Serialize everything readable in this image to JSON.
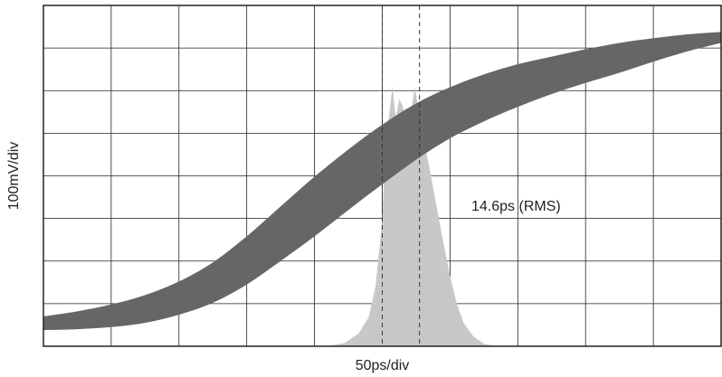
{
  "chart_data": {
    "type": "area",
    "title": "",
    "xlabel": "50ps/div",
    "ylabel": "100mV/div",
    "x_unit_per_div": "50ps",
    "y_unit_per_div": "100mV",
    "divisions": {
      "x": 10,
      "y": 8
    },
    "xlim": [
      0,
      10
    ],
    "ylim": [
      0,
      8
    ],
    "grid": true,
    "series": [
      {
        "role": "waveform-eye-band",
        "color": "#666666",
        "x": [
          0,
          0.5,
          1,
          1.5,
          2,
          2.5,
          3,
          3.5,
          4,
          4.5,
          5,
          5.5,
          6,
          6.5,
          7,
          7.5,
          8,
          8.5,
          9,
          9.5,
          10
        ],
        "upper": [
          0.7,
          0.82,
          0.98,
          1.2,
          1.52,
          1.97,
          2.58,
          3.28,
          3.98,
          4.62,
          5.2,
          5.7,
          6.08,
          6.38,
          6.62,
          6.8,
          6.97,
          7.12,
          7.23,
          7.32,
          7.38
        ],
        "lower": [
          0.38,
          0.4,
          0.45,
          0.55,
          0.74,
          1.02,
          1.45,
          2.0,
          2.58,
          3.2,
          3.8,
          4.38,
          4.88,
          5.28,
          5.62,
          5.92,
          6.18,
          6.42,
          6.68,
          6.92,
          7.12
        ]
      },
      {
        "role": "jitter-histogram",
        "color": "#c8c8c8",
        "x": [
          4.25,
          4.45,
          4.65,
          4.8,
          4.9,
          5.0,
          5.05,
          5.1,
          5.15,
          5.2,
          5.25,
          5.3,
          5.38,
          5.48,
          5.55,
          5.62,
          5.7,
          5.8,
          5.9,
          6.0,
          6.1,
          6.2,
          6.35,
          6.5,
          6.65
        ],
        "values": [
          0.02,
          0.08,
          0.3,
          0.68,
          1.4,
          2.95,
          5.0,
          5.4,
          6.1,
          5.35,
          5.8,
          5.65,
          5.05,
          6.08,
          5.4,
          4.8,
          4.15,
          3.3,
          2.45,
          1.65,
          1.0,
          0.55,
          0.22,
          0.06,
          0.01
        ]
      }
    ],
    "markers": {
      "style": "dashed",
      "x": [
        5.0,
        5.55
      ]
    },
    "annotation": "14.6ps (RMS)"
  }
}
